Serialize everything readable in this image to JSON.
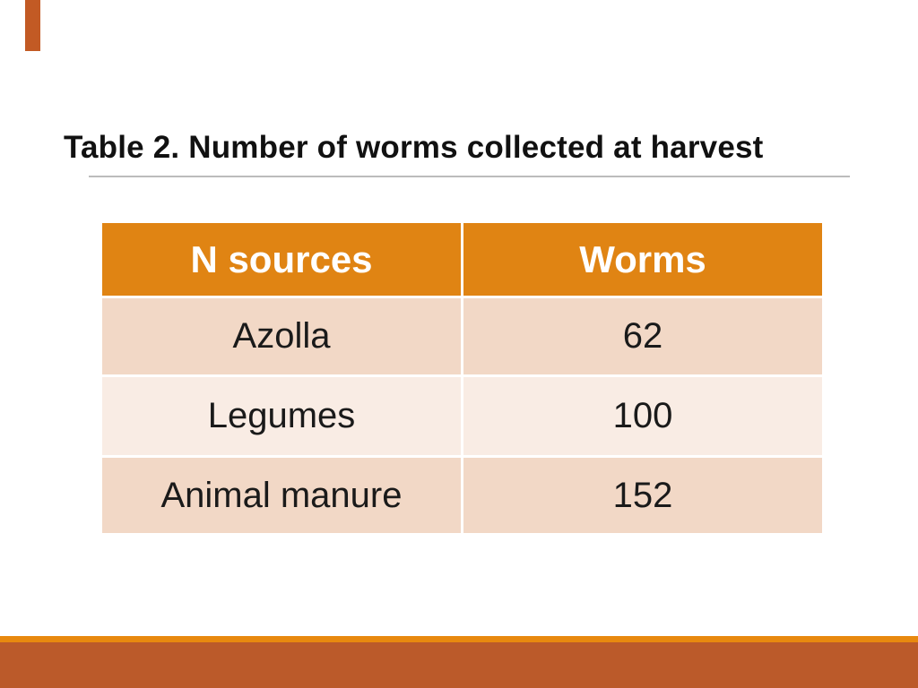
{
  "slide": {
    "title": "Table 2. Number of worms collected at harvest",
    "table": {
      "headers": [
        "N sources",
        "Worms"
      ],
      "rows": [
        [
          "Azolla",
          "62"
        ],
        [
          "Legumes",
          "100"
        ],
        [
          "Animal manure",
          "152"
        ]
      ]
    },
    "colors": {
      "header_bg": "#e08413",
      "header_text": "#ffffff",
      "row_shade_dark": "#f2d8c6",
      "row_shade_light": "#f9ece4",
      "body_text": "#1a1a1a",
      "title_text": "#111111",
      "title_rule": "#bcbcbc",
      "accent_bar": "#c25a24",
      "footer_stripe": "#e8890f",
      "footer_band": "#bb5a2a"
    }
  },
  "chart_data": {
    "type": "table",
    "title": "Table 2. Number of worms collected at harvest",
    "columns": [
      "N sources",
      "Worms"
    ],
    "categories": [
      "Azolla",
      "Legumes",
      "Animal manure"
    ],
    "values": [
      62,
      100,
      152
    ]
  }
}
